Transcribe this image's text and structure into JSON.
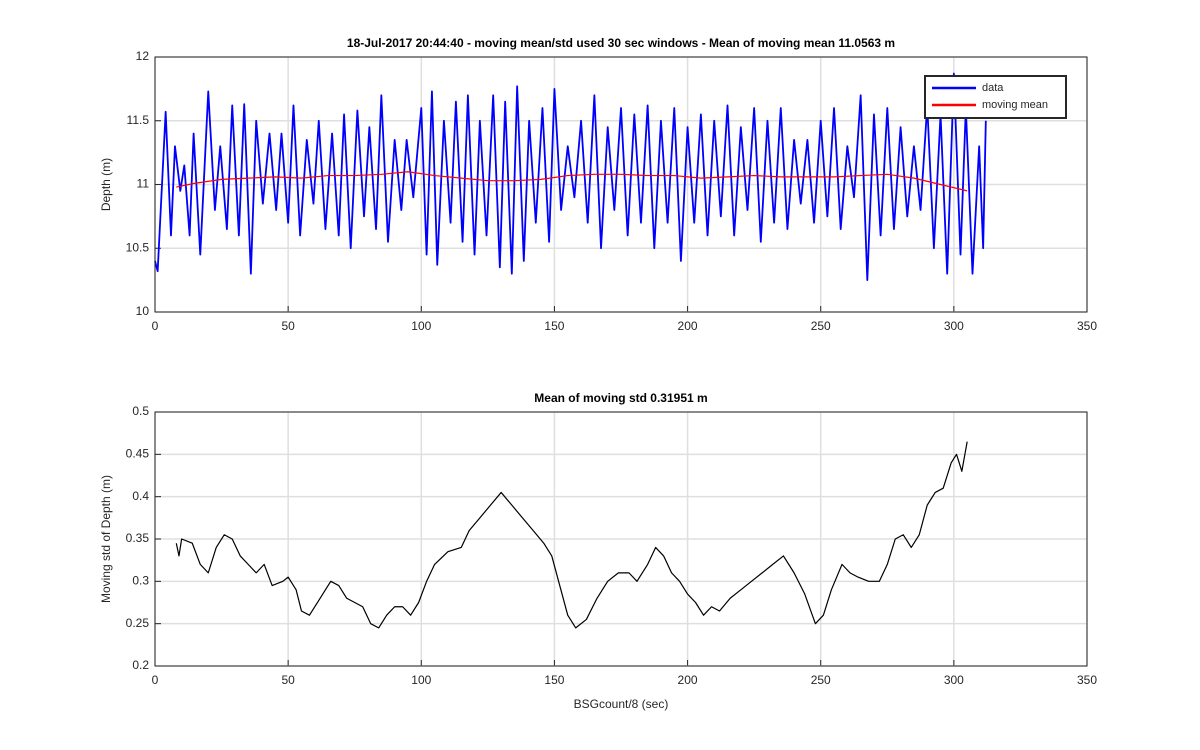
{
  "chart_data": [
    {
      "type": "line",
      "title": "18-Jul-2017 20:44:40 - moving mean/std used 30 sec windows - Mean of moving mean 11.0563 m",
      "ylabel": "Depth (m)",
      "xlim": [
        0,
        350
      ],
      "xticks": [
        0,
        50,
        100,
        150,
        200,
        250,
        300,
        350
      ],
      "ylim": [
        10,
        12
      ],
      "yticks": [
        10,
        10.5,
        11,
        11.5,
        12
      ],
      "grid": true,
      "legend": "northeast",
      "series": [
        {
          "name": "data",
          "color": "#0000ff",
          "x": [
            0,
            1,
            4,
            6,
            7.5,
            9.5,
            11,
            13,
            14.5,
            17,
            20,
            22.5,
            24.5,
            27,
            29,
            31.5,
            33.5,
            36,
            38,
            40.5,
            43,
            45.5,
            47.5,
            50,
            52,
            54.5,
            57,
            59.5,
            61.5,
            64,
            66.5,
            69,
            71,
            73.5,
            76,
            78.5,
            80.5,
            83,
            85,
            87.5,
            90,
            92.5,
            94.5,
            97,
            100,
            102,
            104,
            106,
            108.5,
            111,
            113,
            115.5,
            117.5,
            120,
            122,
            124.5,
            127,
            129.5,
            131.5,
            134,
            136,
            138.5,
            140.5,
            143,
            145.5,
            148,
            150,
            152.5,
            155,
            157.5,
            160,
            162.5,
            165,
            167.5,
            170,
            172.5,
            175,
            177.5,
            180,
            182.5,
            185,
            187.5,
            190,
            192.5,
            195,
            197.5,
            200,
            202.5,
            205,
            207.5,
            210,
            212.5,
            215,
            217.5,
            220,
            222.5,
            225,
            227.5,
            230,
            232.5,
            235,
            237.5,
            240,
            242.5,
            245,
            247.5,
            250,
            252.5,
            255,
            257.5,
            260,
            262.5,
            265,
            267.5,
            270,
            272.5,
            275,
            277.5,
            280,
            282.5,
            285,
            287.5,
            290,
            292.5,
            295,
            297.5,
            300,
            302.5,
            304.5,
            307,
            309.5,
            311,
            312
          ],
          "values": [
            10.4,
            10.32,
            11.57,
            10.6,
            11.3,
            10.95,
            11.15,
            10.6,
            11.4,
            10.45,
            11.73,
            10.8,
            11.3,
            10.65,
            11.62,
            10.6,
            11.63,
            10.3,
            11.5,
            10.85,
            11.4,
            10.8,
            11.4,
            10.7,
            11.62,
            10.6,
            11.35,
            10.85,
            11.5,
            10.65,
            11.4,
            10.6,
            11.55,
            10.5,
            11.58,
            10.75,
            11.45,
            10.65,
            11.7,
            10.55,
            11.35,
            10.8,
            11.35,
            10.9,
            11.6,
            10.45,
            11.73,
            10.37,
            11.5,
            10.7,
            11.65,
            10.55,
            11.7,
            10.45,
            11.5,
            10.6,
            11.7,
            10.35,
            11.65,
            10.3,
            11.77,
            10.4,
            11.5,
            10.7,
            11.6,
            10.55,
            11.75,
            10.8,
            11.3,
            10.9,
            11.5,
            10.7,
            11.7,
            10.5,
            11.45,
            10.8,
            11.6,
            10.6,
            11.55,
            10.7,
            11.62,
            10.5,
            11.5,
            10.7,
            11.6,
            10.4,
            11.45,
            10.7,
            11.55,
            10.6,
            11.5,
            10.75,
            11.62,
            10.6,
            11.45,
            10.8,
            11.6,
            10.55,
            11.5,
            10.7,
            11.6,
            10.65,
            11.35,
            10.85,
            11.35,
            10.7,
            11.5,
            10.75,
            11.6,
            10.65,
            11.3,
            10.9,
            11.7,
            10.25,
            11.55,
            10.6,
            11.6,
            10.65,
            11.45,
            10.75,
            11.3,
            10.8,
            11.62,
            10.5,
            11.55,
            10.3,
            11.87,
            10.45,
            11.6,
            10.3,
            11.3,
            10.5,
            11.5
          ]
        },
        {
          "name": "moving mean",
          "color": "#ff0000",
          "x": [
            8,
            15,
            25,
            35,
            45,
            55,
            65,
            75,
            85,
            95,
            105,
            115,
            125,
            135,
            145,
            155,
            165,
            175,
            185,
            195,
            205,
            215,
            225,
            235,
            245,
            255,
            265,
            275,
            285,
            295,
            305
          ],
          "values": [
            10.98,
            11.01,
            11.04,
            11.05,
            11.06,
            11.05,
            11.07,
            11.07,
            11.08,
            11.1,
            11.07,
            11.05,
            11.03,
            11.03,
            11.04,
            11.07,
            11.08,
            11.08,
            11.07,
            11.07,
            11.05,
            11.06,
            11.07,
            11.06,
            11.06,
            11.06,
            11.07,
            11.08,
            11.05,
            11.0,
            10.95
          ]
        }
      ]
    },
    {
      "type": "line",
      "title": "Mean of moving std 0.31951 m",
      "xlabel": "BSGcount/8 (sec)",
      "ylabel": "Moving std of Depth (m)",
      "xlim": [
        0,
        350
      ],
      "xticks": [
        0,
        50,
        100,
        150,
        200,
        250,
        300,
        350
      ],
      "ylim": [
        0.2,
        0.5
      ],
      "yticks": [
        0.2,
        0.25,
        0.3,
        0.35,
        0.4,
        0.45,
        0.5
      ],
      "grid": true,
      "series": [
        {
          "color": "#000000",
          "x": [
            8,
            9,
            10,
            14,
            17,
            20,
            23,
            26,
            29,
            32,
            35,
            38,
            41,
            44,
            48,
            50,
            53,
            55,
            58,
            62,
            66,
            69,
            72,
            75,
            78,
            81,
            84,
            87,
            90,
            93,
            96,
            99,
            102,
            105,
            110,
            115,
            118,
            122,
            126,
            130,
            134,
            138,
            142,
            146,
            149,
            152,
            155,
            158,
            162,
            166,
            170,
            174,
            178,
            181,
            185,
            188,
            191,
            194,
            197,
            200,
            203,
            206,
            209,
            212,
            216,
            220,
            224,
            228,
            232,
            236,
            240,
            244,
            248,
            251,
            254,
            258,
            261,
            264,
            268,
            272,
            275,
            278,
            281,
            284,
            287,
            290,
            293,
            296,
            299,
            301,
            303,
            305
          ],
          "values": [
            0.345,
            0.33,
            0.35,
            0.345,
            0.32,
            0.31,
            0.34,
            0.355,
            0.35,
            0.33,
            0.32,
            0.31,
            0.32,
            0.295,
            0.3,
            0.305,
            0.29,
            0.265,
            0.26,
            0.28,
            0.3,
            0.295,
            0.28,
            0.275,
            0.27,
            0.25,
            0.245,
            0.26,
            0.27,
            0.27,
            0.26,
            0.275,
            0.3,
            0.32,
            0.335,
            0.34,
            0.36,
            0.375,
            0.39,
            0.405,
            0.39,
            0.375,
            0.36,
            0.345,
            0.33,
            0.295,
            0.26,
            0.245,
            0.255,
            0.28,
            0.3,
            0.31,
            0.31,
            0.3,
            0.32,
            0.34,
            0.33,
            0.31,
            0.3,
            0.285,
            0.275,
            0.26,
            0.27,
            0.265,
            0.28,
            0.29,
            0.3,
            0.31,
            0.32,
            0.33,
            0.31,
            0.285,
            0.25,
            0.26,
            0.29,
            0.32,
            0.31,
            0.305,
            0.3,
            0.3,
            0.32,
            0.35,
            0.355,
            0.34,
            0.355,
            0.39,
            0.405,
            0.41,
            0.44,
            0.45,
            0.43,
            0.465
          ]
        }
      ]
    }
  ]
}
